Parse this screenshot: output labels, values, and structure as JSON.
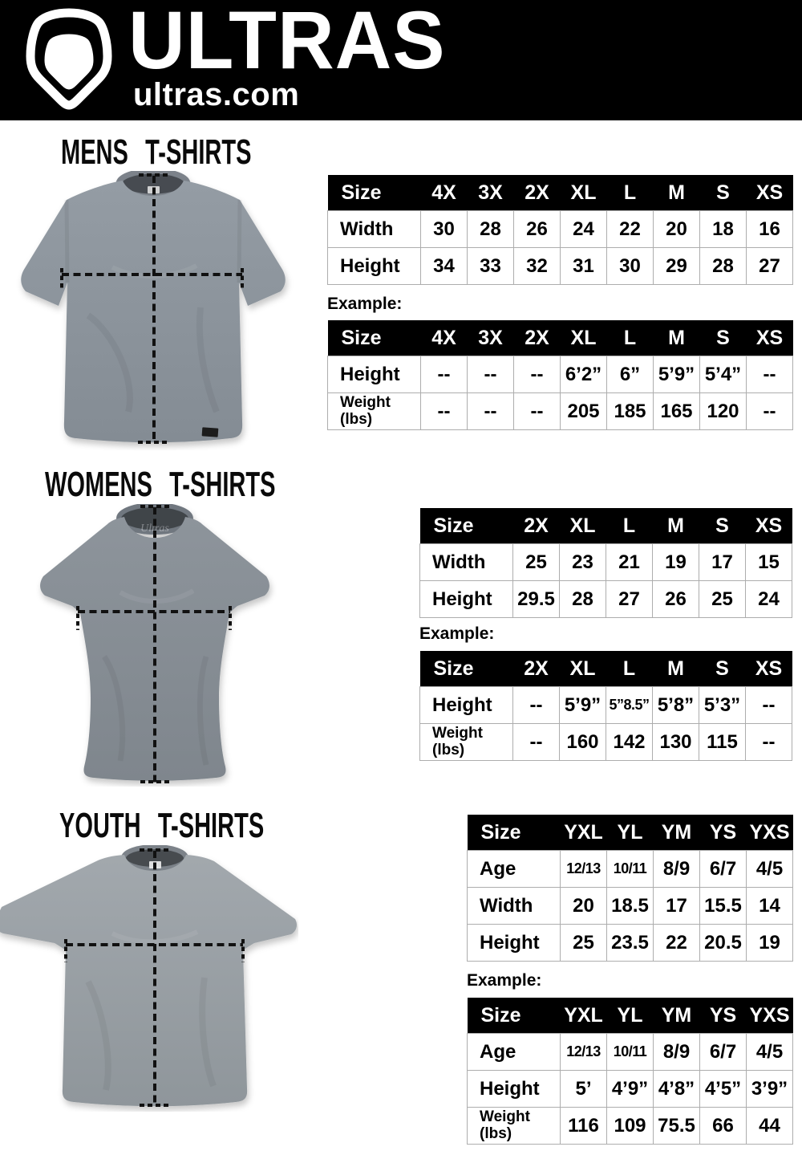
{
  "header": {
    "brand": "ULTRAS",
    "site": "ultras.com",
    "logo_icon": "pentagon-badge-icon"
  },
  "colors": {
    "header_bg": "#000000",
    "table_header_bg": "#000000",
    "table_border": "#adadad",
    "mens_shirt_gray": "#8c949b",
    "womens_shirt_gray": "#868d94",
    "youth_shirt_gray": "#99a0a5",
    "measure_line": "#111111"
  },
  "sections": {
    "mens": {
      "title": "MENS T-SHIRTS",
      "example_label": "Example:",
      "size_table": {
        "header": [
          "Size",
          "4X",
          "3X",
          "2X",
          "XL",
          "L",
          "M",
          "S",
          "XS"
        ],
        "rows": [
          {
            "label": "Width",
            "values": [
              "30",
              "28",
              "26",
              "24",
              "22",
              "20",
              "18",
              "16"
            ]
          },
          {
            "label": "Height",
            "values": [
              "34",
              "33",
              "32",
              "31",
              "30",
              "29",
              "28",
              "27"
            ]
          }
        ]
      },
      "example_table": {
        "header": [
          "Size",
          "4X",
          "3X",
          "2X",
          "XL",
          "L",
          "M",
          "S",
          "XS"
        ],
        "rows": [
          {
            "label": "Height",
            "values": [
              "--",
              "--",
              "--",
              "6’2”",
              "6”",
              "5’9”",
              "5’4”",
              "--"
            ]
          },
          {
            "label": "Weight\n(lbs)",
            "values": [
              "--",
              "--",
              "--",
              "205",
              "185",
              "165",
              "120",
              "--"
            ]
          }
        ]
      }
    },
    "womens": {
      "title": "WOMENS T-SHIRTS",
      "example_label": "Example:",
      "size_table": {
        "header": [
          "Size",
          "2X",
          "XL",
          "L",
          "M",
          "S",
          "XS"
        ],
        "rows": [
          {
            "label": "Width",
            "values": [
              "25",
              "23",
              "21",
              "19",
              "17",
              "15"
            ]
          },
          {
            "label": "Height",
            "values": [
              "29.5",
              "28",
              "27",
              "26",
              "25",
              "24"
            ]
          }
        ]
      },
      "example_table": {
        "header": [
          "Size",
          "2X",
          "XL",
          "L",
          "M",
          "S",
          "XS"
        ],
        "rows": [
          {
            "label": "Height",
            "values": [
              "--",
              "5’9”",
              "5”8.5”",
              "5’8”",
              "5’3”",
              "--"
            ]
          },
          {
            "label": "Weight\n(lbs)",
            "values": [
              "--",
              "160",
              "142",
              "130",
              "115",
              "--"
            ]
          }
        ]
      }
    },
    "youth": {
      "title": "YOUTH T-SHIRTS",
      "example_label": "Example:",
      "size_table": {
        "header": [
          "Size",
          "YXL",
          "YL",
          "YM",
          "YS",
          "YXS"
        ],
        "rows": [
          {
            "label": "Age",
            "values": [
              "12/13",
              "10/11",
              "8/9",
              "6/7",
              "4/5"
            ]
          },
          {
            "label": "Width",
            "values": [
              "20",
              "18.5",
              "17",
              "15.5",
              "14"
            ]
          },
          {
            "label": "Height",
            "values": [
              "25",
              "23.5",
              "22",
              "20.5",
              "19"
            ]
          }
        ]
      },
      "example_table": {
        "header": [
          "Size",
          "YXL",
          "YL",
          "YM",
          "YS",
          "YXS"
        ],
        "rows": [
          {
            "label": "Age",
            "values": [
              "12/13",
              "10/11",
              "8/9",
              "6/7",
              "4/5"
            ]
          },
          {
            "label": "Height",
            "values": [
              "5’",
              "4’9”",
              "4’8”",
              "4’5”",
              "3’9”"
            ]
          },
          {
            "label": "Weight\n(lbs)",
            "values": [
              "116",
              "109",
              "75.5",
              "66",
              "44"
            ]
          }
        ]
      }
    }
  }
}
